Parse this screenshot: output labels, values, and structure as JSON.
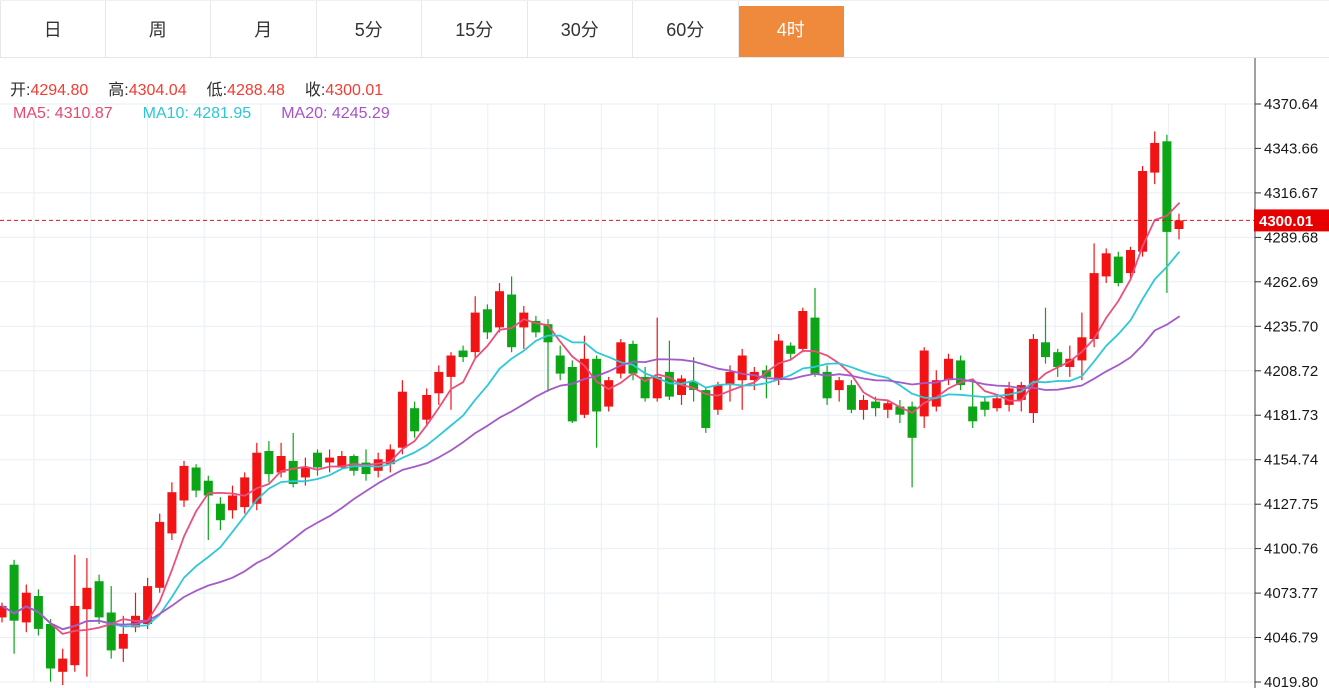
{
  "tabs": {
    "items": [
      {
        "label": "日"
      },
      {
        "label": "周"
      },
      {
        "label": "月"
      },
      {
        "label": "5分"
      },
      {
        "label": "15分"
      },
      {
        "label": "30分"
      },
      {
        "label": "60分"
      },
      {
        "label": "4时"
      }
    ],
    "active_index": 7,
    "active_color": "#ef8a3d"
  },
  "legend": {
    "ohlc": [
      {
        "label": "开:",
        "value": "4294.80"
      },
      {
        "label": "高:",
        "value": "4304.04"
      },
      {
        "label": "低:",
        "value": "4288.48"
      },
      {
        "label": "收:",
        "value": "4300.01"
      }
    ],
    "value_color": "#f53b31",
    "ma": [
      {
        "label": "MA5:",
        "value": "4310.87",
        "color": "#e8486e"
      },
      {
        "label": "MA10:",
        "value": "4281.95",
        "color": "#2bc7d4"
      },
      {
        "label": "MA20:",
        "value": "4245.29",
        "color": "#a752c8"
      }
    ]
  },
  "chart_data": {
    "type": "candlestick",
    "timeframe": "4时",
    "current_price": 4300.01,
    "current_price_label": "4300.01",
    "y_axis": {
      "max": 4370.64,
      "min": 4019.8,
      "labels": [
        "4370.64",
        "4343.66",
        "4316.67",
        "4289.68",
        "4262.69",
        "4235.70",
        "4208.72",
        "4181.73",
        "4154.74",
        "4127.75",
        "4100.76",
        "4073.77",
        "4046.79",
        "4019.80"
      ]
    },
    "ma": [
      {
        "name": "MA5",
        "period": 5,
        "value": 4310.87,
        "color": "#e9507e"
      },
      {
        "name": "MA10",
        "period": 10,
        "value": 4281.95,
        "color": "#2fc8d8"
      },
      {
        "name": "MA20",
        "period": 20,
        "value": 4245.29,
        "color": "#a45ac8"
      }
    ],
    "colors": {
      "up": "#f21414",
      "down": "#0ba516",
      "grid": "#e8eff5",
      "axis": "#3f4348",
      "tick_label": "#16181a",
      "price_line": "#e01414",
      "price_tag": "#e60000"
    },
    "candles": [
      [
        4059,
        4068,
        4056,
        4066
      ],
      [
        4091,
        4094,
        4037,
        4057
      ],
      [
        4056,
        4079,
        4050,
        4074
      ],
      [
        4072,
        4076,
        4048,
        4052
      ],
      [
        4055,
        4058,
        4020,
        4028
      ],
      [
        4026,
        4040,
        4018,
        4034
      ],
      [
        4030,
        4097,
        4026,
        4066
      ],
      [
        4064,
        4095,
        4023,
        4077
      ],
      [
        4081,
        4085,
        4055,
        4059
      ],
      [
        4062,
        4078,
        4034,
        4039
      ],
      [
        4040,
        4060,
        4032,
        4049
      ],
      [
        4053,
        4074,
        4050,
        4060
      ],
      [
        4055,
        4083,
        4052,
        4078
      ],
      [
        4077,
        4122,
        4074,
        4117
      ],
      [
        4110,
        4141,
        4106,
        4135
      ],
      [
        4130,
        4154,
        4126,
        4151
      ],
      [
        4150,
        4152,
        4132,
        4136
      ],
      [
        4142,
        4145,
        4106,
        4133
      ],
      [
        4128,
        4132,
        4112,
        4118
      ],
      [
        4124,
        4139,
        4119,
        4133
      ],
      [
        4126,
        4147,
        4122,
        4144
      ],
      [
        4128,
        4165,
        4124,
        4159
      ],
      [
        4160,
        4166,
        4141,
        4146
      ],
      [
        4147,
        4165,
        4144,
        4157
      ],
      [
        4154,
        4171,
        4138,
        4140
      ],
      [
        4144,
        4156,
        4139,
        4150
      ],
      [
        4159,
        4161,
        4145,
        4150
      ],
      [
        4153,
        4161,
        4147,
        4156
      ],
      [
        4150,
        4160,
        4149,
        4157
      ],
      [
        4157,
        4158,
        4145,
        4148
      ],
      [
        4153,
        4161,
        4142,
        4146
      ],
      [
        4148,
        4159,
        4144,
        4155
      ],
      [
        4152,
        4164,
        4147,
        4161
      ],
      [
        4162,
        4203,
        4158,
        4196
      ],
      [
        4186,
        4190,
        4168,
        4172
      ],
      [
        4179,
        4198,
        4175,
        4194
      ],
      [
        4195,
        4212,
        4188,
        4208
      ],
      [
        4205,
        4220,
        4185,
        4218
      ],
      [
        4221,
        4224,
        4214,
        4217
      ],
      [
        4220,
        4254,
        4216,
        4244
      ],
      [
        4246,
        4249,
        4228,
        4232
      ],
      [
        4235,
        4262,
        4232,
        4257
      ],
      [
        4255,
        4266,
        4220,
        4223
      ],
      [
        4235,
        4248,
        4222,
        4244
      ],
      [
        4239,
        4242,
        4229,
        4232
      ],
      [
        4237,
        4240,
        4196,
        4226
      ],
      [
        4218,
        4224,
        4203,
        4207
      ],
      [
        4211,
        4215,
        4177,
        4178
      ],
      [
        4182,
        4230,
        4180,
        4216
      ],
      [
        4216,
        4218,
        4162,
        4184
      ],
      [
        4187,
        4205,
        4184,
        4203
      ],
      [
        4207,
        4228,
        4204,
        4226
      ],
      [
        4225,
        4227,
        4203,
        4207
      ],
      [
        4205,
        4211,
        4190,
        4192
      ],
      [
        4192,
        4241,
        4190,
        4205
      ],
      [
        4208,
        4227,
        4191,
        4193
      ],
      [
        4194,
        4206,
        4188,
        4204
      ],
      [
        4202,
        4217,
        4190,
        4197
      ],
      [
        4197,
        4199,
        4171,
        4174
      ],
      [
        4185,
        4202,
        4182,
        4200
      ],
      [
        4200,
        4212,
        4190,
        4208
      ],
      [
        4203,
        4222,
        4185,
        4218
      ],
      [
        4203,
        4211,
        4197,
        4208
      ],
      [
        4209,
        4212,
        4192,
        4205
      ],
      [
        4203,
        4231,
        4200,
        4227
      ],
      [
        4224,
        4226,
        4215,
        4219
      ],
      [
        4222,
        4247,
        4220,
        4245
      ],
      [
        4241,
        4259,
        4205,
        4207
      ],
      [
        4208,
        4212,
        4188,
        4192
      ],
      [
        4197,
        4205,
        4190,
        4203
      ],
      [
        4200,
        4203,
        4183,
        4185
      ],
      [
        4185,
        4194,
        4179,
        4191
      ],
      [
        4190,
        4193,
        4181,
        4186
      ],
      [
        4185,
        4191,
        4180,
        4189
      ],
      [
        4187,
        4191,
        4177,
        4182
      ],
      [
        4187,
        4190,
        4138,
        4168
      ],
      [
        4181,
        4223,
        4174,
        4221
      ],
      [
        4187,
        4209,
        4184,
        4203
      ],
      [
        4203,
        4219,
        4200,
        4216
      ],
      [
        4215,
        4218,
        4197,
        4200
      ],
      [
        4187,
        4203,
        4174,
        4178
      ],
      [
        4190,
        4193,
        4181,
        4185
      ],
      [
        4186,
        4194,
        4184,
        4192
      ],
      [
        4188,
        4202,
        4184,
        4198
      ],
      [
        4191,
        4202,
        4184,
        4200
      ],
      [
        4183,
        4231,
        4177,
        4228
      ],
      [
        4226,
        4247,
        4213,
        4217
      ],
      [
        4220,
        4222,
        4205,
        4211
      ],
      [
        4211,
        4224,
        4205,
        4216
      ],
      [
        4215,
        4244,
        4203,
        4229
      ],
      [
        4228,
        4286,
        4223,
        4268
      ],
      [
        4266,
        4283,
        4262,
        4280
      ],
      [
        4278,
        4281,
        4260,
        4262
      ],
      [
        4268,
        4284,
        4265,
        4282
      ],
      [
        4281,
        4333,
        4278,
        4330
      ],
      [
        4329,
        4354,
        4322,
        4347
      ],
      [
        4348,
        4352,
        4256,
        4293
      ],
      [
        4294.8,
        4304.04,
        4288.48,
        4300.01
      ]
    ]
  }
}
